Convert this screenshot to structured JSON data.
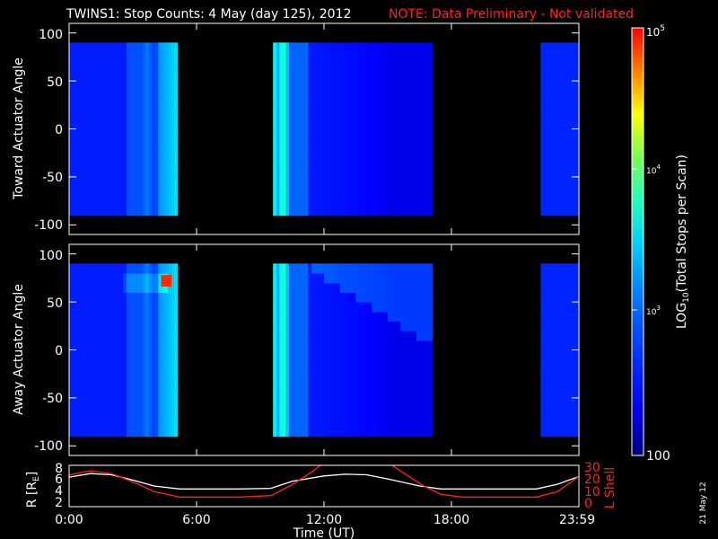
{
  "title": {
    "main": "TWINS1: Stop Counts:  4 May (day 125), 2012",
    "note": "NOTE: Data Preliminary - Not validated"
  },
  "date_stamp": "21 May 12",
  "colors": {
    "background": "#000000",
    "axes": "#ffffff",
    "note": "#ff2020",
    "lshell": "#ff2020",
    "radius": "#ffffff"
  },
  "chart_data": [
    {
      "type": "heatmap",
      "ylabel": "Toward Actuator Angle",
      "ylim": [
        -110,
        110
      ],
      "yticks": [
        "100",
        "50",
        "0",
        "-50",
        "-100"
      ],
      "xlim_hours": [
        0,
        24
      ],
      "xticks": [
        "0:00",
        "6:00",
        "12:00",
        "18:00",
        "23:59"
      ],
      "angle_range": [
        -90,
        90
      ],
      "data_intervals_ut": [
        [
          "0:00",
          "5:10"
        ],
        [
          "9:40",
          "17:10"
        ],
        [
          "22:10",
          "23:59"
        ]
      ],
      "typical_log10_counts": {
        "background": 2.6,
        "0:00-2:45": 2.6,
        "2:45-4:15": 3.0,
        "4:15-5:10": 3.3,
        "9:40-10:30": 3.6,
        "10:30-17:10": 2.6,
        "22:10-23:59": 2.6
      }
    },
    {
      "type": "heatmap",
      "ylabel": "Away Actuator Angle",
      "ylim": [
        -110,
        110
      ],
      "yticks": [
        "100",
        "50",
        "0",
        "-50",
        "-100"
      ],
      "xlim_hours": [
        0,
        24
      ],
      "xticks": [
        "0:00",
        "6:00",
        "12:00",
        "18:00",
        "23:59"
      ],
      "angle_range": [
        -90,
        90
      ],
      "data_intervals_ut": [
        [
          "0:00",
          "5:10"
        ],
        [
          "9:40",
          "17:10"
        ],
        [
          "22:10",
          "23:59"
        ]
      ],
      "hotspot": {
        "time": "4:20",
        "angle": 70,
        "log10_counts": 4.9
      }
    },
    {
      "type": "line",
      "xlabel": "Time (UT)",
      "ylabel_left": "R [R",
      "ylabel_left_sub": "E",
      "ylabel_right": "L Shell",
      "yticks_left": [
        "8",
        "6",
        "4",
        "2"
      ],
      "yticks_right": [
        "30",
        "20",
        "10",
        "0"
      ],
      "ylim_left": [
        1.5,
        8.5
      ],
      "ylim_right": [
        0,
        30
      ],
      "xticks": [
        "0:00",
        "6:00",
        "12:00",
        "18:00",
        "23:59"
      ],
      "series": [
        {
          "axis": "left",
          "x_hours": [
            0,
            1,
            2,
            3,
            4,
            5.2,
            6,
            8,
            9.5,
            10.5,
            12,
            13,
            14,
            15,
            16.5,
            17.5,
            18.5,
            20,
            22,
            23,
            24
          ],
          "values": [
            6.5,
            7.1,
            6.9,
            6.0,
            5.0,
            4.5,
            4.5,
            4.5,
            4.6,
            5.8,
            6.7,
            7.0,
            6.9,
            6.2,
            5.0,
            4.5,
            4.5,
            4.5,
            4.5,
            5.3,
            6.6
          ]
        },
        {
          "axis": "right",
          "x_hours": [
            0,
            1,
            2,
            3,
            4,
            5.2,
            6,
            8,
            9.5,
            10.5,
            11.5,
            12,
            13,
            14,
            15,
            16,
            16.7,
            17.5,
            18.5,
            20,
            22,
            23,
            24
          ],
          "values": [
            23,
            26,
            24,
            18,
            11,
            7,
            7,
            7,
            8,
            16,
            26,
            32,
            40,
            40,
            32,
            22,
            15,
            9,
            7,
            7,
            7,
            11,
            22
          ]
        }
      ]
    }
  ],
  "colorbar": {
    "label_main": "LOG",
    "label_sub": "10",
    "label_rest": "(Total Stops per Scan)",
    "tick_labels": {
      "top": "10",
      "top_exp": "5",
      "mid": "10",
      "mid_exp": "4",
      "low": "10",
      "low_exp": "3",
      "bottom": "100"
    },
    "range_log10": [
      2,
      5
    ]
  }
}
